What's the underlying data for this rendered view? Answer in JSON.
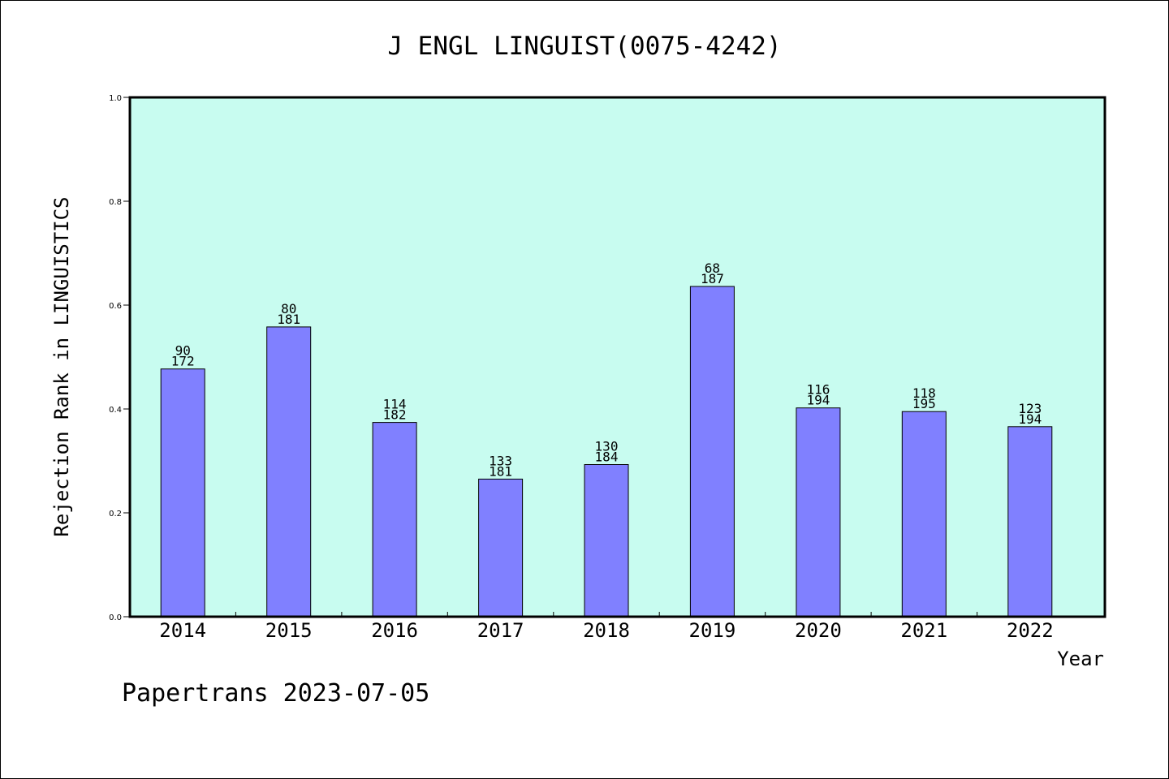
{
  "chart_data": {
    "type": "bar",
    "title": "J ENGL LINGUIST(0075-4242)",
    "xlabel": "Year",
    "ylabel": "Rejection Rank in LINGUISTICS",
    "ylim": [
      0,
      1.0
    ],
    "yticks": [
      "0.0",
      "0.2",
      "0.4",
      "0.6",
      "0.8",
      "1.0"
    ],
    "categories": [
      "2014",
      "2015",
      "2016",
      "2017",
      "2018",
      "2019",
      "2020",
      "2021",
      "2022"
    ],
    "values": [
      0.477,
      0.558,
      0.374,
      0.265,
      0.293,
      0.636,
      0.402,
      0.395,
      0.366
    ],
    "bar_labels": [
      {
        "top": "90",
        "bottom": "172"
      },
      {
        "top": "80",
        "bottom": "181"
      },
      {
        "top": "114",
        "bottom": "182"
      },
      {
        "top": "133",
        "bottom": "181"
      },
      {
        "top": "130",
        "bottom": "184"
      },
      {
        "top": "68",
        "bottom": "187"
      },
      {
        "top": "116",
        "bottom": "194"
      },
      {
        "top": "118",
        "bottom": "195"
      },
      {
        "top": "123",
        "bottom": "194"
      }
    ],
    "grid": false,
    "colors": {
      "plot_background": "#c8fcf0",
      "bar_fill": "#8080ff",
      "bar_edge": "#000000"
    }
  },
  "footer": {
    "text": "Papertrans 2023-07-05"
  }
}
